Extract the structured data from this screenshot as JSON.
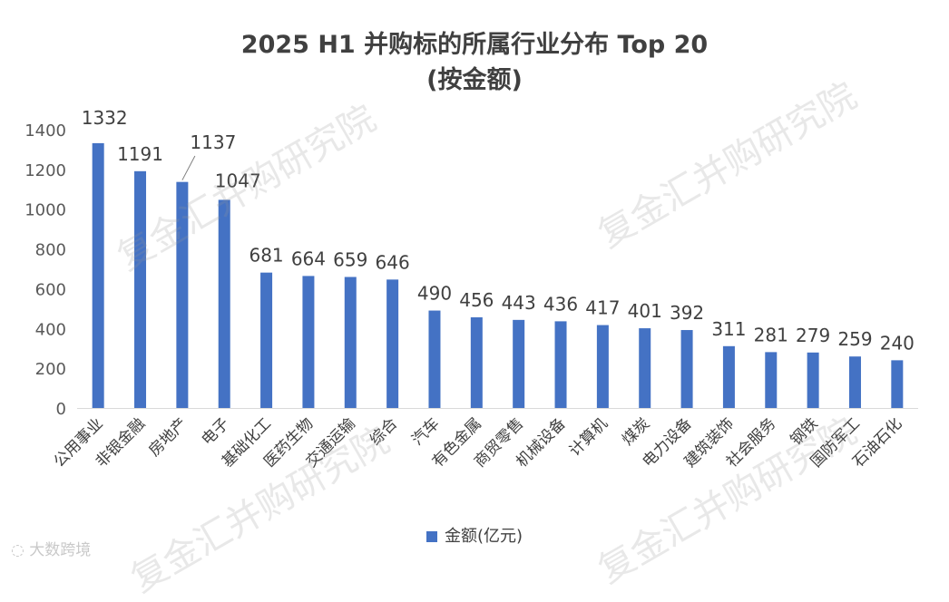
{
  "title_line1": "2025 H1 并购标的所属行业分布 Top 20",
  "title_line2": "(按金额)",
  "watermark": "复金汇并购研究院",
  "corner_brand": "大数跨境",
  "chart_data": {
    "type": "bar",
    "categories": [
      "公用事业",
      "非银金融",
      "房地产",
      "电子",
      "基础化工",
      "医药生物",
      "交通运输",
      "综合",
      "汽车",
      "有色金属",
      "商贸零售",
      "机械设备",
      "计算机",
      "煤炭",
      "电力设备",
      "建筑装饰",
      "社会服务",
      "钢铁",
      "国防军工",
      "石油石化"
    ],
    "series": [
      {
        "name": "金额(亿元)",
        "values": [
          1332,
          1191,
          1137,
          1047,
          681,
          664,
          659,
          646,
          490,
          456,
          443,
          436,
          417,
          401,
          392,
          311,
          281,
          279,
          259,
          240
        ]
      }
    ],
    "ylim": [
      0,
      1400
    ],
    "yticks": [
      0,
      200,
      400,
      600,
      800,
      1000,
      1200,
      1400
    ],
    "grid": false,
    "legend_position": "bottom",
    "bar_color": "#4472C4"
  }
}
